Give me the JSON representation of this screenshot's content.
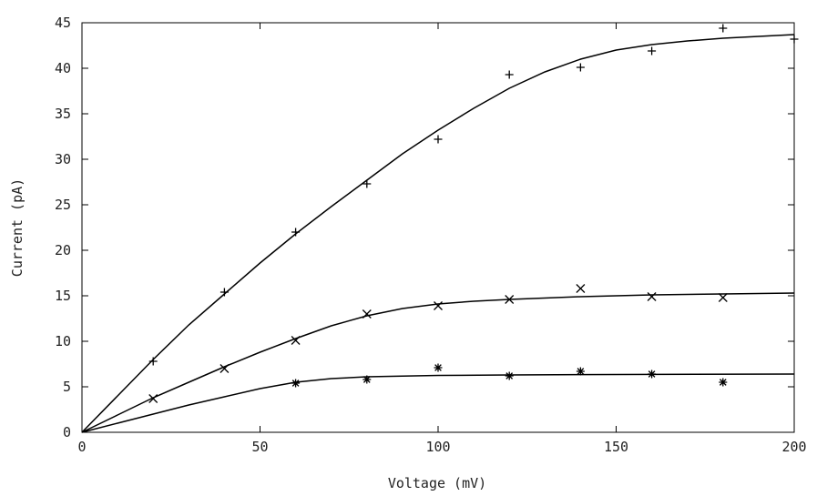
{
  "chart_data": {
    "type": "scatter",
    "title": "",
    "xlabel": "Voltage (mV)",
    "ylabel": "Current (pA)",
    "xlim": [
      0,
      200
    ],
    "ylim": [
      0,
      45
    ],
    "xticks": [
      0,
      50,
      100,
      150,
      200
    ],
    "yticks": [
      0,
      5,
      10,
      15,
      20,
      25,
      30,
      35,
      40,
      45
    ],
    "grid": false,
    "legend": "none",
    "series": [
      {
        "marker": "plus",
        "points": [
          {
            "x": 20,
            "y": 7.8
          },
          {
            "x": 40,
            "y": 15.4
          },
          {
            "x": 60,
            "y": 22.0
          },
          {
            "x": 80,
            "y": 27.3
          },
          {
            "x": 100,
            "y": 32.2
          },
          {
            "x": 120,
            "y": 39.3
          },
          {
            "x": 140,
            "y": 40.1
          },
          {
            "x": 160,
            "y": 41.9
          },
          {
            "x": 180,
            "y": 44.4
          },
          {
            "x": 200,
            "y": 43.2
          }
        ],
        "fit": [
          {
            "x": 0,
            "y": 0
          },
          {
            "x": 10,
            "y": 4.0
          },
          {
            "x": 20,
            "y": 8.0
          },
          {
            "x": 30,
            "y": 11.8
          },
          {
            "x": 40,
            "y": 15.2
          },
          {
            "x": 50,
            "y": 18.6
          },
          {
            "x": 60,
            "y": 21.8
          },
          {
            "x": 70,
            "y": 24.8
          },
          {
            "x": 80,
            "y": 27.7
          },
          {
            "x": 90,
            "y": 30.6
          },
          {
            "x": 100,
            "y": 33.2
          },
          {
            "x": 110,
            "y": 35.6
          },
          {
            "x": 120,
            "y": 37.8
          },
          {
            "x": 130,
            "y": 39.6
          },
          {
            "x": 140,
            "y": 41.0
          },
          {
            "x": 150,
            "y": 42.0
          },
          {
            "x": 160,
            "y": 42.6
          },
          {
            "x": 170,
            "y": 43.0
          },
          {
            "x": 180,
            "y": 43.3
          },
          {
            "x": 190,
            "y": 43.5
          },
          {
            "x": 200,
            "y": 43.7
          }
        ]
      },
      {
        "marker": "cross",
        "points": [
          {
            "x": 20,
            "y": 3.7
          },
          {
            "x": 40,
            "y": 7.0
          },
          {
            "x": 60,
            "y": 10.1
          },
          {
            "x": 80,
            "y": 13.0
          },
          {
            "x": 100,
            "y": 13.9
          },
          {
            "x": 120,
            "y": 14.6
          },
          {
            "x": 140,
            "y": 15.8
          },
          {
            "x": 160,
            "y": 14.9
          },
          {
            "x": 180,
            "y": 14.8
          }
        ],
        "fit": [
          {
            "x": 0,
            "y": 0
          },
          {
            "x": 10,
            "y": 1.9
          },
          {
            "x": 20,
            "y": 3.8
          },
          {
            "x": 30,
            "y": 5.5
          },
          {
            "x": 40,
            "y": 7.2
          },
          {
            "x": 50,
            "y": 8.8
          },
          {
            "x": 60,
            "y": 10.3
          },
          {
            "x": 70,
            "y": 11.7
          },
          {
            "x": 80,
            "y": 12.8
          },
          {
            "x": 90,
            "y": 13.6
          },
          {
            "x": 100,
            "y": 14.1
          },
          {
            "x": 110,
            "y": 14.4
          },
          {
            "x": 120,
            "y": 14.6
          },
          {
            "x": 140,
            "y": 14.9
          },
          {
            "x": 160,
            "y": 15.1
          },
          {
            "x": 180,
            "y": 15.2
          },
          {
            "x": 200,
            "y": 15.3
          }
        ]
      },
      {
        "marker": "star",
        "points": [
          {
            "x": 60,
            "y": 5.4
          },
          {
            "x": 80,
            "y": 5.8
          },
          {
            "x": 100,
            "y": 7.1
          },
          {
            "x": 120,
            "y": 6.2
          },
          {
            "x": 140,
            "y": 6.7
          },
          {
            "x": 160,
            "y": 6.4
          },
          {
            "x": 180,
            "y": 5.5
          }
        ],
        "fit": [
          {
            "x": 0,
            "y": 0
          },
          {
            "x": 10,
            "y": 1.0
          },
          {
            "x": 20,
            "y": 2.0
          },
          {
            "x": 30,
            "y": 3.0
          },
          {
            "x": 40,
            "y": 3.9
          },
          {
            "x": 50,
            "y": 4.8
          },
          {
            "x": 60,
            "y": 5.5
          },
          {
            "x": 70,
            "y": 5.9
          },
          {
            "x": 80,
            "y": 6.1
          },
          {
            "x": 100,
            "y": 6.25
          },
          {
            "x": 120,
            "y": 6.3
          },
          {
            "x": 150,
            "y": 6.35
          },
          {
            "x": 200,
            "y": 6.4
          }
        ]
      }
    ]
  }
}
